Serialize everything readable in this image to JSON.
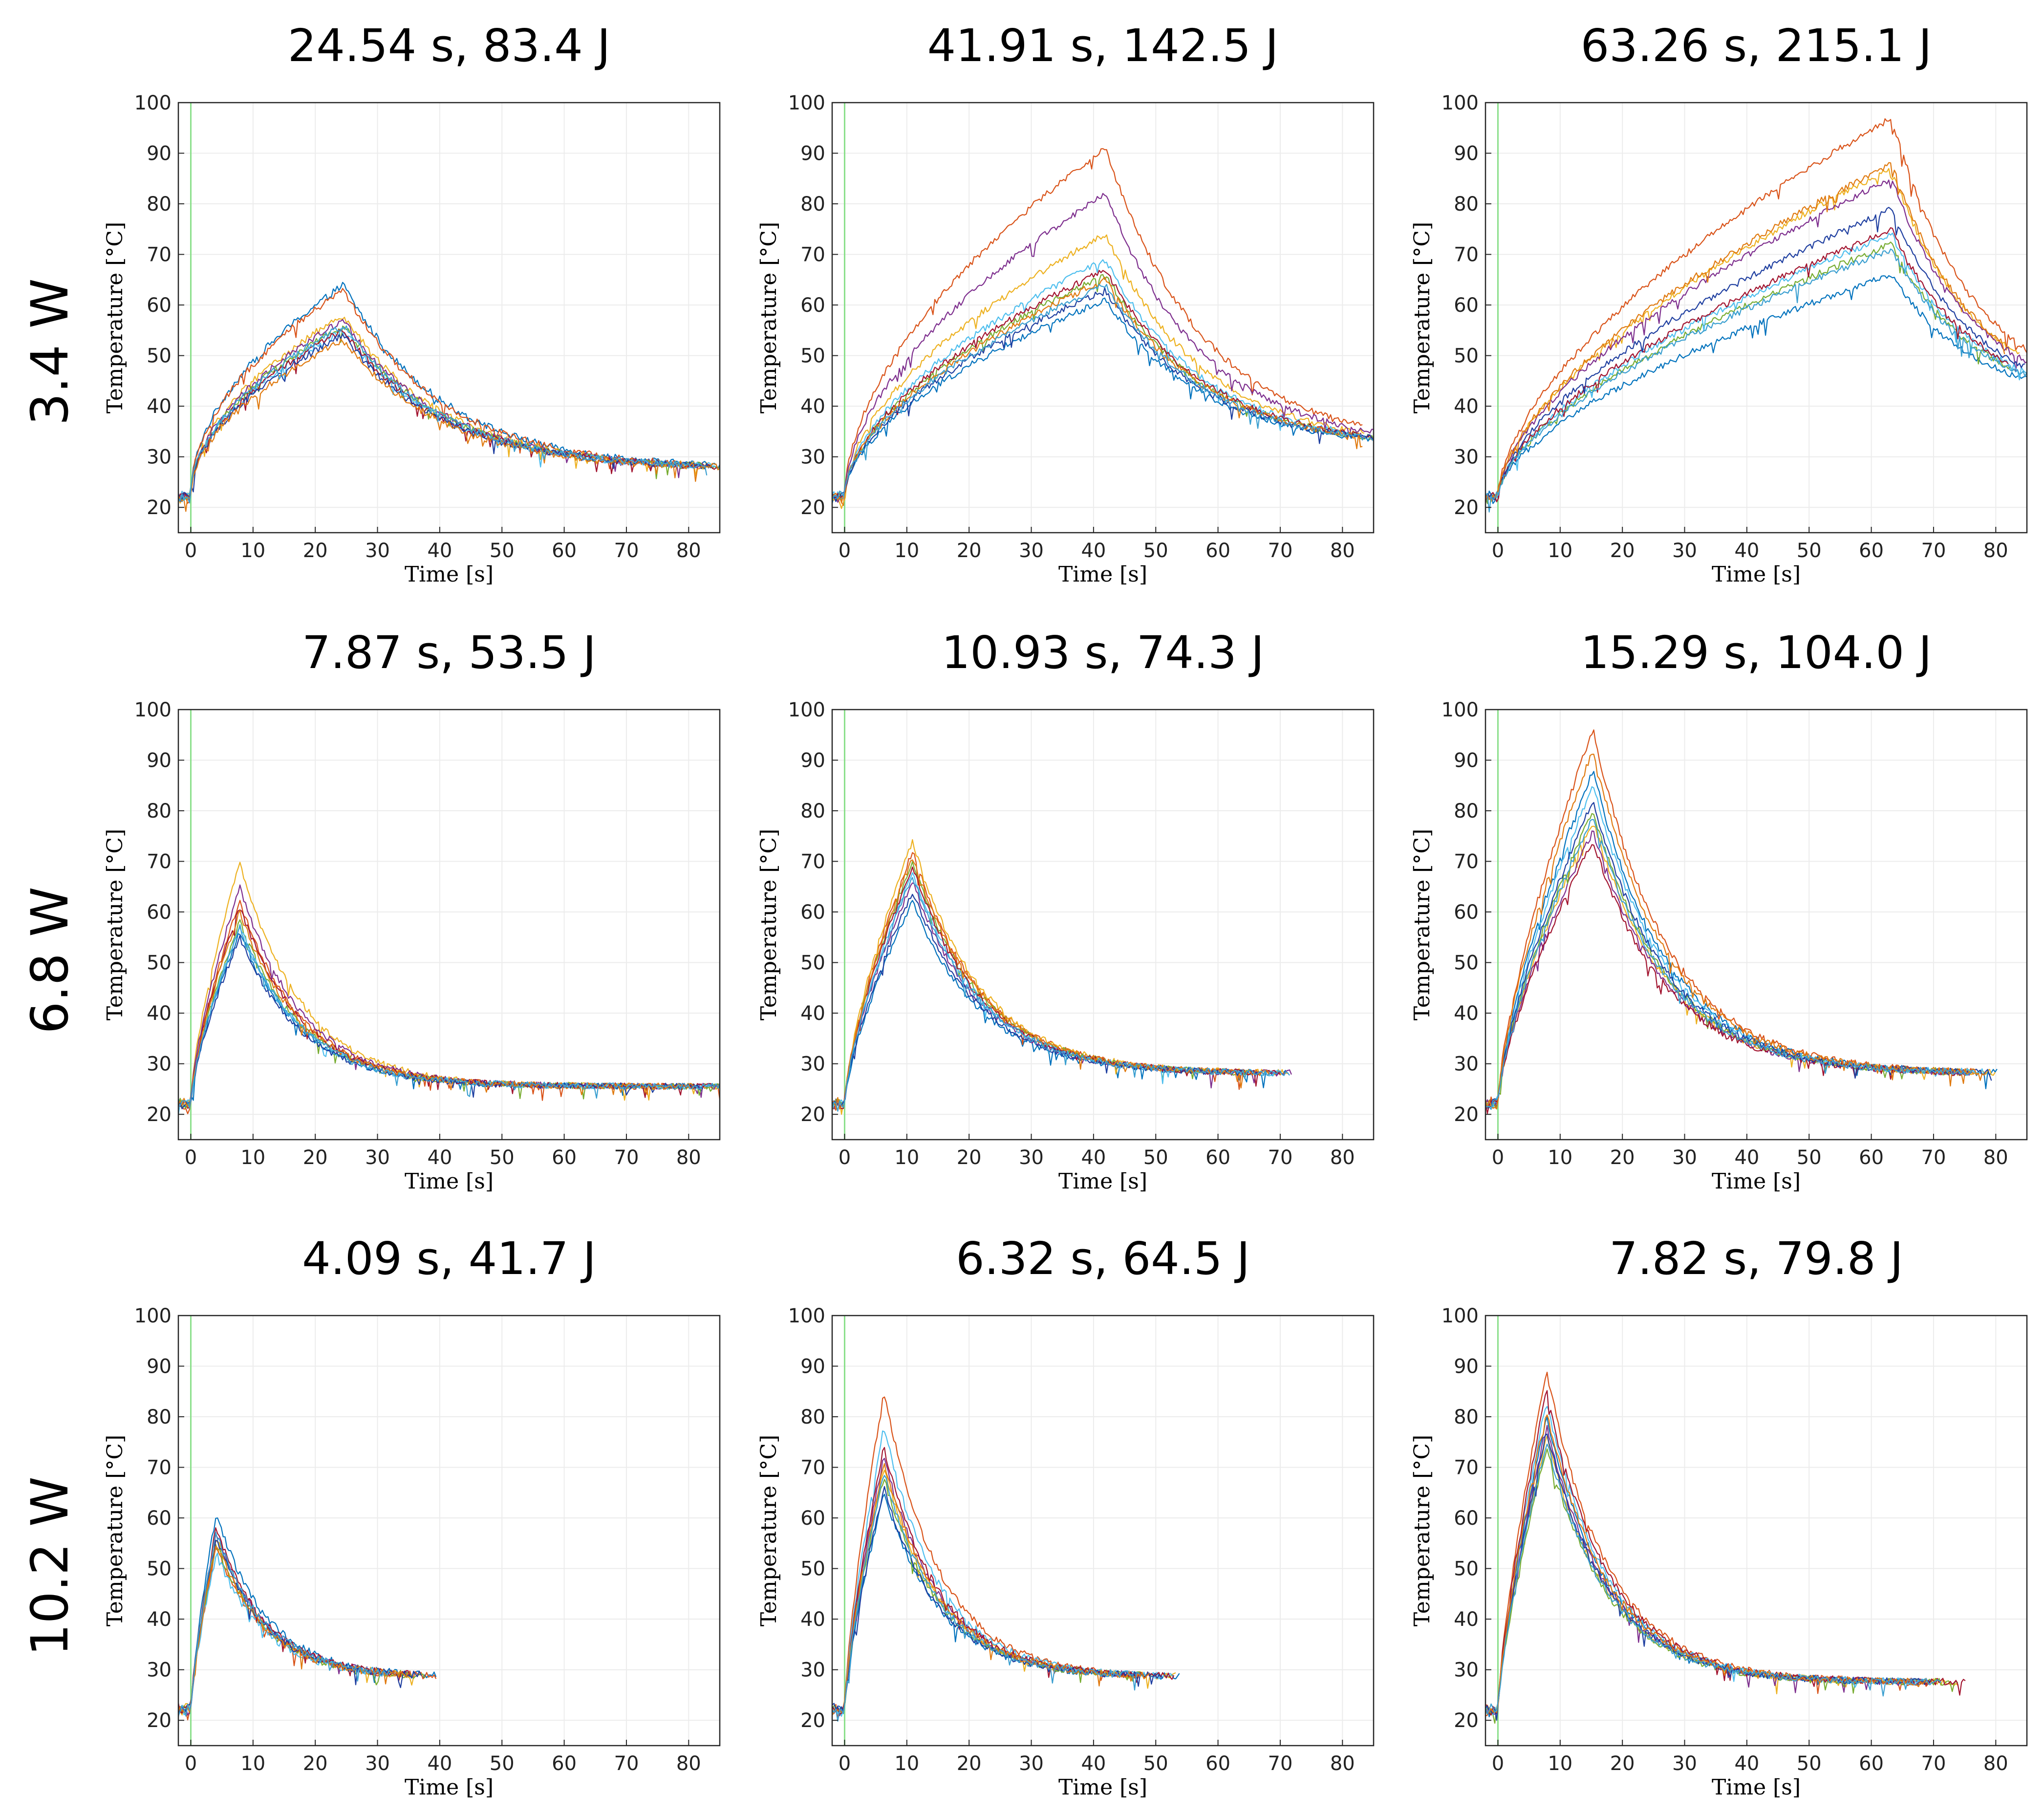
{
  "figure": {
    "row_labels": [
      "3.4 W",
      "6.8 W",
      "10.2 W"
    ]
  },
  "colors": [
    "#0072BD",
    "#D95319",
    "#EDB120",
    "#7E2F8E",
    "#77AC30",
    "#4DBEEE",
    "#A2142F",
    "#1F3FA0",
    "#E07A10",
    "#3A9FD0"
  ],
  "onset_line": {
    "x": 0,
    "color": "#8BE08B"
  },
  "chart_data": [
    {
      "type": "line",
      "power": "3.4 W",
      "title": "24.54 s,  83.4 J",
      "xlabel": "Time [s]",
      "ylabel": "Temperature [°C]",
      "xlim": [
        -2,
        85
      ],
      "ylim": [
        15,
        100
      ],
      "xticks": [
        0,
        10,
        20,
        30,
        40,
        50,
        60,
        70,
        80
      ],
      "yticks": [
        20,
        30,
        40,
        50,
        60,
        70,
        80,
        90,
        100
      ],
      "grid": true,
      "t_heat": 24.54,
      "t_end": 85,
      "base": 22,
      "peaks": [
        64,
        63,
        58,
        57,
        56,
        55,
        55,
        54,
        53,
        56
      ],
      "final": 27.5,
      "tau": 16,
      "shape": 0.5,
      "noise": 1.0
    },
    {
      "type": "line",
      "power": "3.4 W",
      "title": "41.91 s,  142.5 J",
      "xlabel": "Time [s]",
      "ylabel": "Temperature [°C]",
      "xlim": [
        -2,
        85
      ],
      "ylim": [
        15,
        100
      ],
      "xticks": [
        0,
        10,
        20,
        30,
        40,
        50,
        60,
        70,
        80
      ],
      "yticks": [
        20,
        30,
        40,
        50,
        60,
        70,
        80,
        90,
        100
      ],
      "grid": true,
      "t_heat": 41.91,
      "t_end": 85,
      "base": 22,
      "peaks": [
        61,
        91,
        74,
        82,
        66,
        69,
        67,
        63,
        65,
        64
      ],
      "final": 31.5,
      "tau": 16,
      "shape": 0.55,
      "noise": 0.9
    },
    {
      "type": "line",
      "power": "3.4 W",
      "title": "63.26 s,  215.1 J",
      "xlabel": "Time [s]",
      "ylabel": "Temperature [°C]",
      "xlim": [
        -2,
        85
      ],
      "ylim": [
        15,
        100
      ],
      "xticks": [
        0,
        10,
        20,
        30,
        40,
        50,
        60,
        70,
        80
      ],
      "yticks": [
        20,
        30,
        40,
        50,
        60,
        70,
        80,
        90,
        100
      ],
      "grid": true,
      "t_heat": 63.26,
      "t_end": 85,
      "base": 22,
      "peaks": [
        66,
        97,
        87,
        85,
        72,
        74,
        75,
        79,
        88,
        71
      ],
      "final": 40.5,
      "tau": 13,
      "shape": 0.6,
      "noise": 0.9
    },
    {
      "type": "line",
      "power": "6.8 W",
      "title": "7.87 s,  53.5 J",
      "xlabel": "Time [s]",
      "ylabel": "Temperature [°C]",
      "xlim": [
        -2,
        85
      ],
      "ylim": [
        15,
        100
      ],
      "xticks": [
        0,
        10,
        20,
        30,
        40,
        50,
        60,
        70,
        80
      ],
      "yticks": [
        20,
        30,
        40,
        50,
        60,
        70,
        80,
        90,
        100
      ],
      "grid": true,
      "t_heat": 7.87,
      "t_end": 85,
      "base": 22,
      "peaks": [
        56,
        62,
        70,
        65,
        58,
        57,
        61,
        55,
        60,
        57
      ],
      "final": 25.5,
      "tau": 10,
      "shape": 0.7,
      "noise": 0.9
    },
    {
      "type": "line",
      "power": "6.8 W",
      "title": "10.93 s,  74.3 J",
      "xlabel": "Time [s]",
      "ylabel": "Temperature [°C]",
      "xlim": [
        -2,
        85
      ],
      "ylim": [
        15,
        100
      ],
      "xticks": [
        0,
        10,
        20,
        30,
        40,
        50,
        60,
        70,
        80
      ],
      "yticks": [
        20,
        30,
        40,
        50,
        60,
        70,
        80,
        90,
        100
      ],
      "grid": true,
      "t_heat": 10.93,
      "t_end": 68,
      "base": 22,
      "peaks": [
        62,
        72,
        74,
        66,
        70,
        68,
        69,
        64,
        71,
        67
      ],
      "final": 28,
      "tau": 11,
      "shape": 0.7,
      "noise": 0.9
    },
    {
      "type": "line",
      "power": "6.8 W",
      "title": "15.29 s,  104.0 J",
      "xlabel": "Time [s]",
      "ylabel": "Temperature [°C]",
      "xlim": [
        -2,
        85
      ],
      "ylim": [
        15,
        100
      ],
      "xticks": [
        0,
        10,
        20,
        30,
        40,
        50,
        60,
        70,
        80
      ],
      "yticks": [
        20,
        30,
        40,
        50,
        60,
        70,
        80,
        90,
        100
      ],
      "grid": true,
      "t_heat": 15.29,
      "t_end": 77,
      "base": 22,
      "peaks": [
        88,
        96,
        78,
        76,
        80,
        85,
        74,
        82,
        92,
        79
      ],
      "final": 28,
      "tau": 12,
      "shape": 0.7,
      "noise": 1.0
    },
    {
      "type": "line",
      "power": "10.2 W",
      "title": "4.09 s,  41.7 J",
      "xlabel": "Time [s]",
      "ylabel": "Temperature [°C]",
      "xlim": [
        -2,
        85
      ],
      "ylim": [
        15,
        100
      ],
      "xticks": [
        0,
        10,
        20,
        30,
        40,
        50,
        60,
        70,
        80
      ],
      "yticks": [
        20,
        30,
        40,
        50,
        60,
        70,
        80,
        90,
        100
      ],
      "grid": true,
      "t_heat": 4.09,
      "t_end": 36,
      "base": 22,
      "peaks": [
        61,
        54,
        56,
        57,
        55,
        53,
        58,
        56,
        55,
        57
      ],
      "final": 28.5,
      "tau": 8,
      "shape": 0.75,
      "noise": 1.1
    },
    {
      "type": "line",
      "power": "10.2 W",
      "title": "6.32 s,  64.5 J",
      "xlabel": "Time [s]",
      "ylabel": "Temperature [°C]",
      "xlim": [
        -2,
        85
      ],
      "ylim": [
        15,
        100
      ],
      "xticks": [
        0,
        10,
        20,
        30,
        40,
        50,
        60,
        70,
        80
      ],
      "yticks": [
        20,
        30,
        40,
        50,
        60,
        70,
        80,
        90,
        100
      ],
      "grid": true,
      "t_heat": 6.32,
      "t_end": 50,
      "base": 22,
      "peaks": [
        65,
        85,
        70,
        72,
        68,
        78,
        74,
        66,
        71,
        69
      ],
      "final": 28.5,
      "tau": 9,
      "shape": 0.75,
      "noise": 1.0
    },
    {
      "type": "line",
      "power": "10.2 W",
      "title": "7.82 s,  79.8 J",
      "xlabel": "Time [s]",
      "ylabel": "Temperature [°C]",
      "xlim": [
        -2,
        85
      ],
      "ylim": [
        15,
        100
      ],
      "xticks": [
        0,
        10,
        20,
        30,
        40,
        50,
        60,
        70,
        80
      ],
      "yticks": [
        20,
        30,
        40,
        50,
        60,
        70,
        80,
        90,
        100
      ],
      "grid": true,
      "t_heat": 7.82,
      "t_end": 72,
      "base": 22,
      "peaks": [
        80,
        89,
        76,
        78,
        74,
        83,
        85,
        77,
        81,
        75
      ],
      "final": 27.5,
      "tau": 10,
      "shape": 0.75,
      "noise": 1.0
    }
  ]
}
